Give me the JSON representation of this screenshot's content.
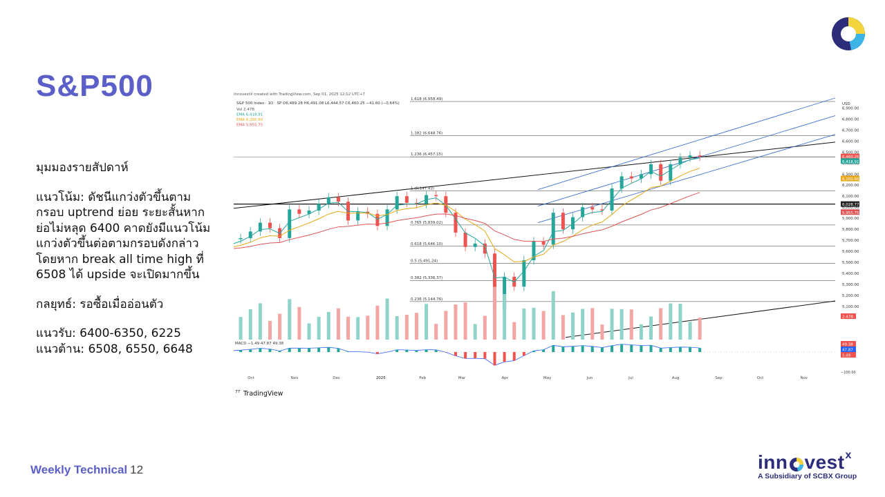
{
  "slide": {
    "title": "S&P500",
    "commentary": {
      "heading": "มุมมองรายสัปดาห์",
      "trend_lines": [
        "แนวโน้ม: ดัชนีแกว่งตัวขึ้นตาม",
        "กรอบ uptrend ย่อย ระยะสั้นหาก",
        "ย่อไม่หลุด 6400 คาดยังมีแนวโน้ม",
        "แกว่งตัวขึ้นต่อตามกรอบดังกล่าว",
        "โดยหาก break all time high ที่",
        "6508 ได้ upside จะเปิดมากขึ้น"
      ],
      "strategy": "กลยุทธ์: รอซื้อเมื่ออ่อนตัว",
      "support": "แนวรับ: 6400-6350, 6225",
      "resistance": "แนวต้าน: 6508, 6550, 6648"
    },
    "footer": {
      "label": "Weekly Technical",
      "page": "12"
    },
    "brand": {
      "name_pre": "inn",
      "name_post": "vest",
      "name_x": "x",
      "subtitle": "A Subsidiary of SCBX Group"
    },
    "colors": {
      "title": "#5b5fc7",
      "brand": "#2b2d7a",
      "up": "#26a69a",
      "down": "#ef5350",
      "ema_fast": "#26a69a",
      "ema_mid": "#e6a817",
      "ema_slow": "#e05353",
      "channel": "#3f6fd6"
    }
  },
  "chart_data": {
    "type": "candlestick",
    "source_note": "InnovestX created with TradingView.com, Sep 01, 2025 12:12 UTC+7",
    "header": "S&P 500 Index · 1D · SP  O6,489.28 H6,491.08 L6,444.57 C6,460.25 −41.60 (−0.64%)",
    "indicators": [
      "Vol  2.47B",
      "EMA  6,418.91",
      "EMA  6,260.60",
      "EMA  5,955.75"
    ],
    "currency": "USD",
    "watermark": "TradingView",
    "y_axis_ticks": [
      6900,
      6800,
      6700,
      6600,
      6500,
      6400,
      6300,
      6200,
      6100,
      6000,
      5900,
      5800,
      5700,
      5600,
      5500,
      5400,
      5300,
      5200,
      5100
    ],
    "y_tick_labels": [
      "6,900.00",
      "6,800.00",
      "6,700.00",
      "6,600.00",
      "6,500.00",
      "6,400.00",
      "6,300.00",
      "6,200.00",
      "6,100.00",
      "6,000.00",
      "5,900.00",
      "5,800.00",
      "5,700.00",
      "5,600.00",
      "5,500.00",
      "5,400.00",
      "5,300.00",
      "5,200.00",
      "5,100.00"
    ],
    "x_axis_labels": [
      "Oct",
      "Nov",
      "Dec",
      "2025",
      "Feb",
      "Mar",
      "Apr",
      "May",
      "Jun",
      "Jul",
      "Aug",
      "Sep",
      "Oct",
      "Nov"
    ],
    "fib_levels": [
      {
        "label": "1.618 (6,958.49)",
        "value": 6958.49
      },
      {
        "label": "1.382 (6,648.76)",
        "value": 6648.76
      },
      {
        "label": "1.236 (6,457.15)",
        "value": 6457.15
      },
      {
        "label": "1 (6,147.43)",
        "value": 6147.43
      },
      {
        "label": "0.765 (5,839.02)",
        "value": 5839.02
      },
      {
        "label": "0.618 (5,646.10)",
        "value": 5646.1
      },
      {
        "label": "0.5 (5,491.24)",
        "value": 5491.24
      },
      {
        "label": "0.382 (5,336.37)",
        "value": 5336.37
      },
      {
        "label": "0.236 (5,144.76)",
        "value": 5144.76
      }
    ],
    "price_tags": [
      {
        "label": "6,460.25",
        "value": 6460.25,
        "color": "#ef5350"
      },
      {
        "label": "6,418.91",
        "value": 6418.91,
        "color": "#26a69a"
      },
      {
        "label": "6,260.60",
        "value": 6260.6,
        "color": "#e6a817"
      },
      {
        "label": "6,028.77",
        "value": 6028.77,
        "color": "#222222"
      },
      {
        "label": "5,955.75",
        "value": 5955.75,
        "color": "#e05353"
      }
    ],
    "lower_tags": [
      "2.47B",
      "49.38",
      "47.87",
      "1.49"
    ],
    "macd_label": "MACD  −1.49  47.87  49.38",
    "bottom_tick": "−100.00",
    "close_points": [
      [
        "2024-09-16",
        5615
      ],
      [
        "2024-09-23",
        5710
      ],
      [
        "2024-09-30",
        5720
      ],
      [
        "2024-10-07",
        5780
      ],
      [
        "2024-10-14",
        5860
      ],
      [
        "2024-10-21",
        5810
      ],
      [
        "2024-10-28",
        5720
      ],
      [
        "2024-11-04",
        5980
      ],
      [
        "2024-11-11",
        5940
      ],
      [
        "2024-11-18",
        5970
      ],
      [
        "2024-11-25",
        6030
      ],
      [
        "2024-12-02",
        6090
      ],
      [
        "2024-12-09",
        6050
      ],
      [
        "2024-12-16",
        5880
      ],
      [
        "2024-12-23",
        5960
      ],
      [
        "2024-12-30",
        5940
      ],
      [
        "2025-01-06",
        5830
      ],
      [
        "2025-01-13",
        5980
      ],
      [
        "2025-01-20",
        6100
      ],
      [
        "2025-01-27",
        6040
      ],
      [
        "2025-02-03",
        6030
      ],
      [
        "2025-02-10",
        6110
      ],
      [
        "2025-02-17",
        6100
      ],
      [
        "2025-02-24",
        5950
      ],
      [
        "2025-03-03",
        5770
      ],
      [
        "2025-03-10",
        5640
      ],
      [
        "2025-03-17",
        5670
      ],
      [
        "2025-03-24",
        5580
      ],
      [
        "2025-03-31",
        5070
      ],
      [
        "2025-04-07",
        5370
      ],
      [
        "2025-04-14",
        5280
      ],
      [
        "2025-04-21",
        5520
      ],
      [
        "2025-04-28",
        5690
      ],
      [
        "2025-05-05",
        5660
      ],
      [
        "2025-05-12",
        5950
      ],
      [
        "2025-05-19",
        5800
      ],
      [
        "2025-05-26",
        5910
      ],
      [
        "2025-06-02",
        6000
      ],
      [
        "2025-06-09",
        5980
      ],
      [
        "2025-06-16",
        5970
      ],
      [
        "2025-06-23",
        6170
      ],
      [
        "2025-06-30",
        6280
      ],
      [
        "2025-07-07",
        6260
      ],
      [
        "2025-07-14",
        6300
      ],
      [
        "2025-07-21",
        6390
      ],
      [
        "2025-07-28",
        6240
      ],
      [
        "2025-08-04",
        6390
      ],
      [
        "2025-08-11",
        6450
      ],
      [
        "2025-08-18",
        6470
      ],
      [
        "2025-08-25",
        6460
      ]
    ]
  }
}
